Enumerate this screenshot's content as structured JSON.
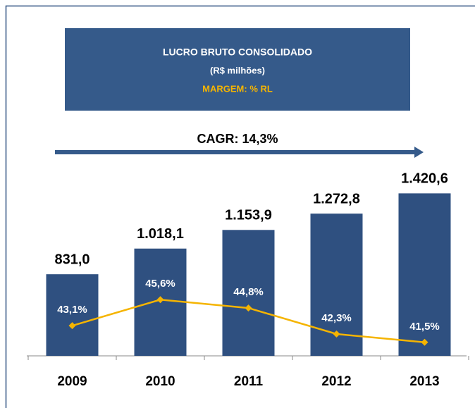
{
  "chart_data": {
    "type": "bar_line",
    "title": "LUCRO BRUTO CONSOLIDADO",
    "subtitle": "(R$ milhões)",
    "line_title": "MARGEM: % RL",
    "annotation": "CAGR: 14,3%",
    "categories": [
      "2009",
      "2010",
      "2011",
      "2012",
      "2013"
    ],
    "series": [
      {
        "name": "Lucro Bruto",
        "color": "#2f5080",
        "values": [
          831.0,
          1018.1,
          1153.9,
          1272.8,
          1420.6
        ],
        "value_labels": [
          "831,0",
          "1.018,1",
          "1.153,9",
          "1.272,8",
          "1.420,6"
        ]
      },
      {
        "name": "Margem",
        "color": "#f5b400",
        "axis": "y2",
        "values": [
          43.1,
          45.6,
          44.8,
          42.3,
          41.5
        ],
        "value_labels": [
          "43,1%",
          "45,6%",
          "44,8%",
          "42,3%",
          "41,5%"
        ]
      }
    ],
    "ylim": [
      236,
      1700
    ],
    "y2lim": [
      40.2,
      59.5
    ]
  }
}
